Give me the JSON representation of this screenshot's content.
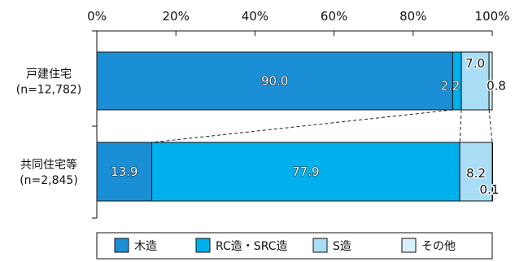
{
  "chart_data": {
    "type": "bar",
    "orientation": "horizontal",
    "stacked": true,
    "percent": true,
    "title": "",
    "xlabel": "",
    "ylabel": "",
    "xlim": [
      0,
      100
    ],
    "x_ticks": [
      "0%",
      "20%",
      "40%",
      "60%",
      "80%",
      "100%"
    ],
    "categories": [
      {
        "name": "戸建住宅",
        "n": "(n=12,782)"
      },
      {
        "name": "共同住宅等",
        "n": "(n=2,845)"
      }
    ],
    "series": [
      {
        "name": "木造",
        "color": "#1a8fd6",
        "values": [
          90.0,
          13.9
        ]
      },
      {
        "name": "RC造・SRC造",
        "color": "#00b0ec",
        "values": [
          2.2,
          77.9
        ]
      },
      {
        "name": "S造",
        "color": "#a9dcf5",
        "values": [
          7.0,
          8.2
        ]
      },
      {
        "name": "その他",
        "color": "#d9f0fb",
        "values": [
          0.8,
          0.1
        ]
      }
    ],
    "data_labels": [
      [
        "90.0",
        "2.2",
        "7.0",
        "0.8"
      ],
      [
        "13.9",
        "77.9",
        "8.2",
        "0.1"
      ]
    ],
    "grid": false,
    "legend_position": "bottom"
  }
}
